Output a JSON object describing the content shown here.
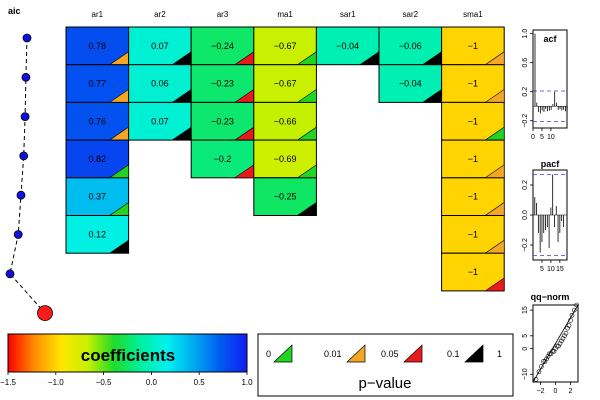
{
  "panels": {
    "aic_title": "aic",
    "coef_legend_label": "coefficients",
    "pvalue_legend_title": "p−value",
    "acf_title": "acf",
    "pacf_title": "pacf",
    "qq_title": "qq−norm"
  },
  "chart_data": [
    {
      "type": "heatmap",
      "title": "",
      "columns": [
        "ar1",
        "ar2",
        "ar3",
        "ma1",
        "sar1",
        "sar2",
        "sma1"
      ],
      "color_scale": {
        "min": -1.5,
        "max": 1.0,
        "ticks": [
          "−1.5",
          "−1.0",
          "−0.5",
          "0.0",
          "0.5",
          "1.0"
        ]
      },
      "rows": [
        {
          "cells": [
            {
              "col": 0,
              "label": "0.78",
              "value": 0.78,
              "p": "0.01"
            },
            {
              "col": 1,
              "label": "0.07",
              "value": 0.07,
              "p": "0.1"
            },
            {
              "col": 2,
              "label": "−0.24",
              "value": -0.24,
              "p": "0.05"
            },
            {
              "col": 3,
              "label": "−0.67",
              "value": -0.67,
              "p": "0"
            },
            {
              "col": 4,
              "label": "−0.04",
              "value": -0.04,
              "p": "0.1"
            },
            {
              "col": 5,
              "label": "−0.06",
              "value": -0.06,
              "p": "0.1"
            },
            {
              "col": 6,
              "label": "−1",
              "value": -1,
              "p": "0.01"
            }
          ]
        },
        {
          "cells": [
            {
              "col": 0,
              "label": "0.77",
              "value": 0.77,
              "p": "0.01"
            },
            {
              "col": 1,
              "label": "0.06",
              "value": 0.06,
              "p": "0.1"
            },
            {
              "col": 2,
              "label": "−0.23",
              "value": -0.23,
              "p": "0.05"
            },
            {
              "col": 3,
              "label": "−0.67",
              "value": -0.67,
              "p": "0"
            },
            {
              "col": 5,
              "label": "−0.04",
              "value": -0.04,
              "p": "0.1"
            },
            {
              "col": 6,
              "label": "−1",
              "value": -1,
              "p": "0.01"
            }
          ]
        },
        {
          "cells": [
            {
              "col": 0,
              "label": "0.76",
              "value": 0.76,
              "p": "0.01"
            },
            {
              "col": 1,
              "label": "0.07",
              "value": 0.07,
              "p": "0.1"
            },
            {
              "col": 2,
              "label": "−0.23",
              "value": -0.23,
              "p": "0.05"
            },
            {
              "col": 3,
              "label": "−0.66",
              "value": -0.66,
              "p": "0"
            },
            {
              "col": 6,
              "label": "−1",
              "value": -1,
              "p": "0"
            }
          ]
        },
        {
          "cells": [
            {
              "col": 0,
              "label": "0.82",
              "value": 0.82,
              "p": "0"
            },
            {
              "col": 2,
              "label": "−0.2",
              "value": -0.2,
              "p": "0.05"
            },
            {
              "col": 3,
              "label": "−0.69",
              "value": -0.69,
              "p": "0"
            },
            {
              "col": 6,
              "label": "−1",
              "value": -1,
              "p": "0.01"
            }
          ]
        },
        {
          "cells": [
            {
              "col": 0,
              "label": "0.37",
              "value": 0.37,
              "p": "0"
            },
            {
              "col": 3,
              "label": "−0.25",
              "value": -0.25,
              "p": "0.1"
            },
            {
              "col": 6,
              "label": "−1",
              "value": -1,
              "p": "0.01"
            }
          ]
        },
        {
          "cells": [
            {
              "col": 0,
              "label": "0.12",
              "value": 0.12,
              "p": "0.1"
            },
            {
              "col": 6,
              "label": "−1",
              "value": -1,
              "p": "0.01"
            }
          ]
        },
        {
          "cells": [
            {
              "col": 6,
              "label": "−1",
              "value": -1,
              "p": "0.05"
            }
          ]
        }
      ]
    },
    {
      "type": "line",
      "title": "aic",
      "x": [
        0.82,
        0.78,
        0.75,
        0.7,
        0.6,
        0.5,
        0.2,
        -1.0
      ],
      "y": [
        1,
        2,
        3,
        4,
        5,
        6,
        7,
        8
      ],
      "note": "x values in arbitrary units (no axis printed); last point highlighted as best model"
    },
    {
      "type": "bar",
      "title": "acf",
      "x_ticks": [
        "0",
        "5",
        "10"
      ],
      "y_ticks": [
        "−0.2",
        "0.2",
        "0.6",
        "1.0"
      ],
      "ylim": [
        -0.3,
        1.05
      ],
      "xlim": [
        0,
        19
      ],
      "conf_band": 0.21,
      "lags": [
        0,
        1,
        2,
        3,
        4,
        5,
        6,
        7,
        8,
        9,
        10,
        11,
        12,
        13,
        14,
        15,
        16,
        17,
        18
      ],
      "values": [
        1.0,
        0.05,
        -0.08,
        -0.1,
        -0.06,
        -0.08,
        -0.04,
        -0.07,
        -0.06,
        -0.05,
        0.03,
        0.2,
        0.05,
        -0.05,
        -0.04,
        -0.06,
        -0.05,
        -0.07,
        -0.05
      ]
    },
    {
      "type": "bar",
      "title": "pacf",
      "x_ticks": [
        "5",
        "10",
        "15"
      ],
      "y_ticks": [
        "−0.2",
        "0.0",
        "0.2"
      ],
      "ylim": [
        -0.3,
        0.3
      ],
      "xlim": [
        0,
        19
      ],
      "conf_band": 0.27,
      "lags": [
        1,
        2,
        3,
        4,
        5,
        6,
        7,
        8,
        9,
        10,
        11,
        12,
        13,
        14,
        15,
        16,
        17
      ],
      "values": [
        0.12,
        0.08,
        -0.12,
        -0.25,
        -0.18,
        -0.12,
        -0.1,
        -0.08,
        -0.22,
        0.05,
        0.27,
        -0.08,
        0.06,
        -0.18,
        -0.12,
        -0.04,
        -0.08
      ]
    },
    {
      "type": "scatter",
      "title": "qq−norm",
      "x_ticks": [
        "−2",
        "0",
        "2"
      ],
      "y_ticks": [
        "−10",
        "0",
        "5",
        "15"
      ],
      "xlim": [
        -3,
        3
      ],
      "ylim": [
        -13,
        17
      ],
      "x": [
        -2.6,
        -2.2,
        -1.9,
        -1.6,
        -1.4,
        -1.2,
        -1.0,
        -0.8,
        -0.6,
        -0.4,
        -0.2,
        0.0,
        0.2,
        0.4,
        0.6,
        0.8,
        1.0,
        1.2,
        1.4,
        1.6,
        1.8,
        2.0,
        2.2,
        2.5,
        2.8
      ],
      "y": [
        -12,
        -9,
        -7,
        -5,
        -5,
        -4,
        -3,
        -2,
        -2,
        -1,
        -1,
        0,
        1,
        1,
        2,
        3,
        4,
        5,
        6,
        8,
        9,
        11,
        13,
        15,
        17
      ]
    }
  ],
  "pvalue_legend": [
    {
      "label": "0",
      "color": "#21d421"
    },
    {
      "label": "0.01",
      "color": "#f5a623"
    },
    {
      "label": "0.05",
      "color": "#e81a1a"
    },
    {
      "label": "0.1",
      "color": "#000000"
    },
    {
      "label": "1",
      "color": ""
    }
  ]
}
